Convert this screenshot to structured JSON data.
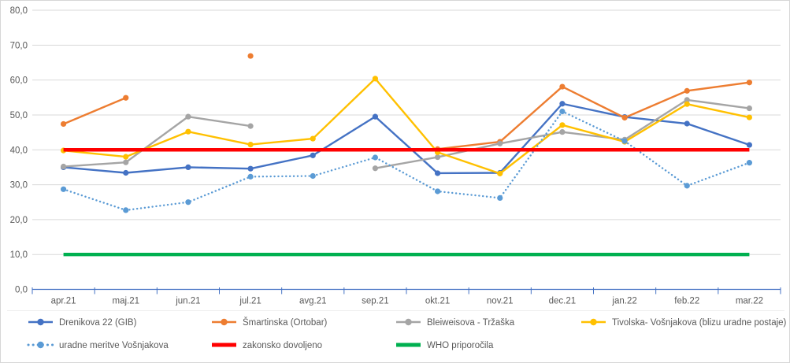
{
  "chart_data": {
    "type": "line",
    "title": "",
    "xlabel": "",
    "ylabel": "",
    "grid": true,
    "legend_position": "bottom",
    "categories": [
      "apr.21",
      "maj.21",
      "jun.21",
      "jul.21",
      "avg.21",
      "sep.21",
      "okt.21",
      "nov.21",
      "dec.21",
      "jan.22",
      "feb.22",
      "mar.22"
    ],
    "y_axis": {
      "min": 0,
      "max": 80,
      "step": 10,
      "tick_labels": [
        "0,0",
        "10,0",
        "20,0",
        "30,0",
        "40,0",
        "50,0",
        "60,0",
        "70,0",
        "80,0"
      ]
    },
    "colors": {
      "axis_text": "#595959",
      "axis_line": "#4472c4",
      "gridline": "#d9d9d9",
      "legend_text": "#595959"
    },
    "series": [
      {
        "name": "Drenikova 22 (GIB)",
        "color": "#4472C4",
        "style": "solid",
        "markers": true,
        "values": [
          35.0,
          33.4,
          35.0,
          34.6,
          38.4,
          49.5,
          33.3,
          33.4,
          53.2,
          49.4,
          47.5,
          41.4
        ]
      },
      {
        "name": "Šmartinska (Ortobar)",
        "color": "#ED7D31",
        "style": "solid",
        "markers": true,
        "values": [
          47.4,
          54.9,
          null,
          66.9,
          null,
          null,
          40.2,
          42.3,
          58.1,
          49.2,
          56.9,
          59.3
        ]
      },
      {
        "name": "Bleiweisova - Tržaška",
        "color": "#A5A5A5",
        "style": "solid",
        "markers": true,
        "values": [
          35.2,
          36.4,
          49.5,
          46.8,
          null,
          34.7,
          37.9,
          41.8,
          45.1,
          42.9,
          54.3,
          51.9
        ]
      },
      {
        "name": "Tivolska- Vošnjakova (blizu uradne postaje)",
        "color": "#FFC000",
        "style": "solid",
        "markers": true,
        "values": [
          39.8,
          38.0,
          45.2,
          41.5,
          43.2,
          60.4,
          39.3,
          33.2,
          47.1,
          42.3,
          53.1,
          49.3
        ]
      },
      {
        "name": "uradne meritve Vošnjakova",
        "color": "#5B9BD5",
        "style": "dotted",
        "markers": true,
        "values": [
          28.7,
          22.7,
          25.0,
          32.3,
          32.5,
          37.8,
          28.1,
          26.2,
          51.0,
          42.5,
          29.7,
          36.3
        ]
      },
      {
        "name": "zakonsko dovoljeno",
        "color": "#FF0000",
        "style": "thick",
        "markers": false,
        "values": [
          40,
          40,
          40,
          40,
          40,
          40,
          40,
          40,
          40,
          40,
          40,
          40
        ]
      },
      {
        "name": "WHO priporočila",
        "color": "#00B050",
        "style": "thick",
        "markers": false,
        "values": [
          10,
          10,
          10,
          10,
          10,
          10,
          10,
          10,
          10,
          10,
          10,
          10
        ]
      }
    ]
  }
}
